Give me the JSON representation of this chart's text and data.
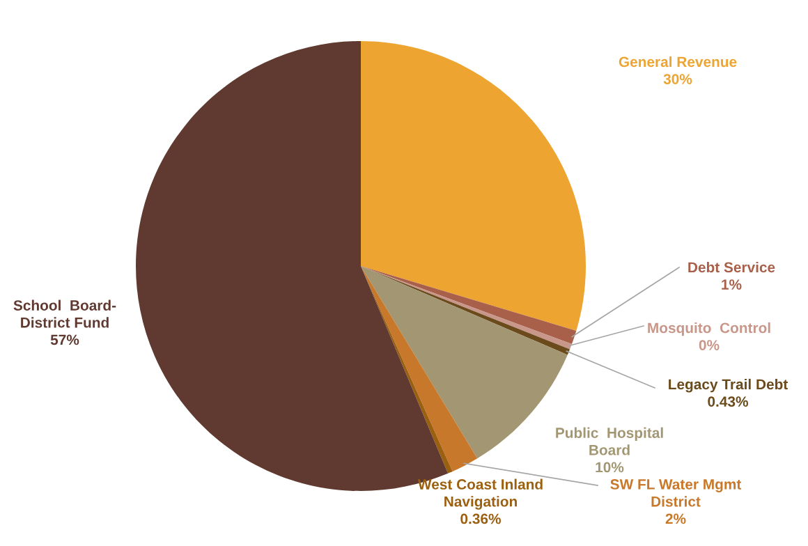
{
  "chart_data": {
    "type": "pie",
    "categories": [
      "General Revenue",
      "Debt Service",
      "Mosquito  Control",
      "Legacy Trail Debt",
      "Public  Hospital\nBoard",
      "SW FL Water Mgmt\nDistrict",
      "West Coast Inland\nNavigation",
      "School  Board-\nDistrict Fund"
    ],
    "values": [
      30,
      1,
      0.4,
      0.43,
      10,
      2,
      0.36,
      57
    ],
    "value_labels": [
      "30%",
      "1%",
      "0%",
      "0.43%",
      "10%",
      "2%",
      "0.36%",
      "57%"
    ],
    "colors": [
      "#eda431",
      "#a9604a",
      "#c8978a",
      "#6b4a1c",
      "#a39673",
      "#c8782a",
      "#9b5f10",
      "#603a30"
    ],
    "legend": false
  }
}
